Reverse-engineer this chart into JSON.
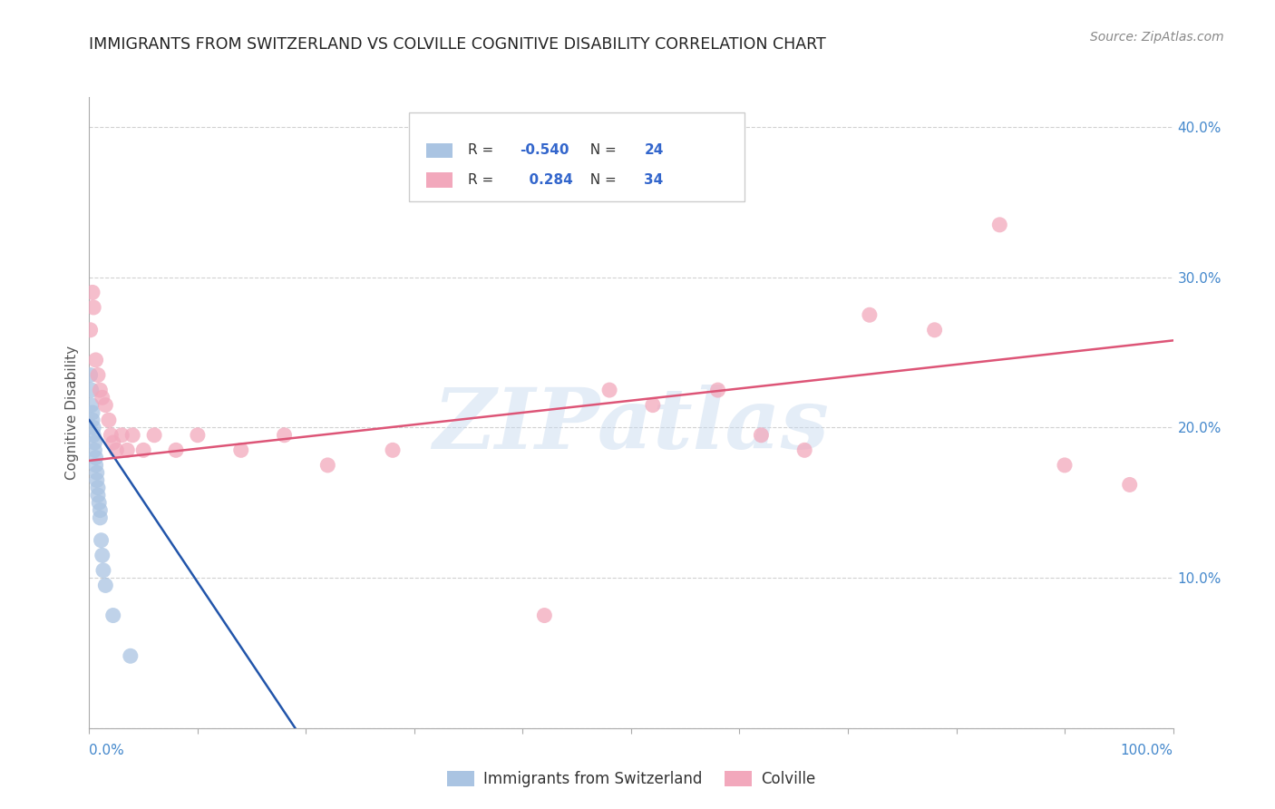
{
  "title": "IMMIGRANTS FROM SWITZERLAND VS COLVILLE COGNITIVE DISABILITY CORRELATION CHART",
  "source": "Source: ZipAtlas.com",
  "ylabel": "Cognitive Disability",
  "ytick_positions": [
    0.0,
    0.1,
    0.2,
    0.3,
    0.4
  ],
  "ytick_labels": [
    "",
    "10.0%",
    "20.0%",
    "30.0%",
    "40.0%"
  ],
  "xtick_positions": [
    0.0,
    0.1,
    0.2,
    0.3,
    0.4,
    0.5,
    0.6,
    0.7,
    0.8,
    0.9,
    1.0
  ],
  "xlim": [
    0.0,
    1.0
  ],
  "ylim": [
    0.0,
    0.42
  ],
  "blue_R": "-0.540",
  "blue_N": "24",
  "pink_R": "0.284",
  "pink_N": "34",
  "blue_color": "#aac4e2",
  "pink_color": "#f2a8bc",
  "blue_line_color": "#2255aa",
  "pink_line_color": "#dd5577",
  "watermark": "ZIPatlas",
  "blue_points_x": [
    0.001,
    0.002,
    0.002,
    0.003,
    0.003,
    0.004,
    0.004,
    0.005,
    0.005,
    0.006,
    0.006,
    0.007,
    0.007,
    0.008,
    0.008,
    0.009,
    0.01,
    0.01,
    0.011,
    0.012,
    0.013,
    0.015,
    0.022,
    0.038
  ],
  "blue_points_y": [
    0.235,
    0.225,
    0.215,
    0.21,
    0.205,
    0.2,
    0.195,
    0.19,
    0.185,
    0.18,
    0.175,
    0.17,
    0.165,
    0.16,
    0.155,
    0.15,
    0.145,
    0.14,
    0.125,
    0.115,
    0.105,
    0.095,
    0.075,
    0.048
  ],
  "pink_points_x": [
    0.001,
    0.003,
    0.004,
    0.006,
    0.008,
    0.01,
    0.012,
    0.015,
    0.018,
    0.02,
    0.022,
    0.025,
    0.03,
    0.035,
    0.04,
    0.05,
    0.06,
    0.08,
    0.1,
    0.14,
    0.18,
    0.22,
    0.28,
    0.42,
    0.48,
    0.52,
    0.58,
    0.62,
    0.66,
    0.72,
    0.78,
    0.84,
    0.9,
    0.96
  ],
  "pink_points_y": [
    0.265,
    0.29,
    0.28,
    0.245,
    0.235,
    0.225,
    0.22,
    0.215,
    0.205,
    0.195,
    0.19,
    0.185,
    0.195,
    0.185,
    0.195,
    0.185,
    0.195,
    0.185,
    0.195,
    0.185,
    0.195,
    0.175,
    0.185,
    0.075,
    0.225,
    0.215,
    0.225,
    0.195,
    0.185,
    0.275,
    0.265,
    0.335,
    0.175,
    0.162
  ],
  "blue_line_x": [
    0.0,
    0.19
  ],
  "blue_line_y": [
    0.205,
    0.0
  ],
  "pink_line_x": [
    0.0,
    1.0
  ],
  "pink_line_y": [
    0.178,
    0.258
  ]
}
